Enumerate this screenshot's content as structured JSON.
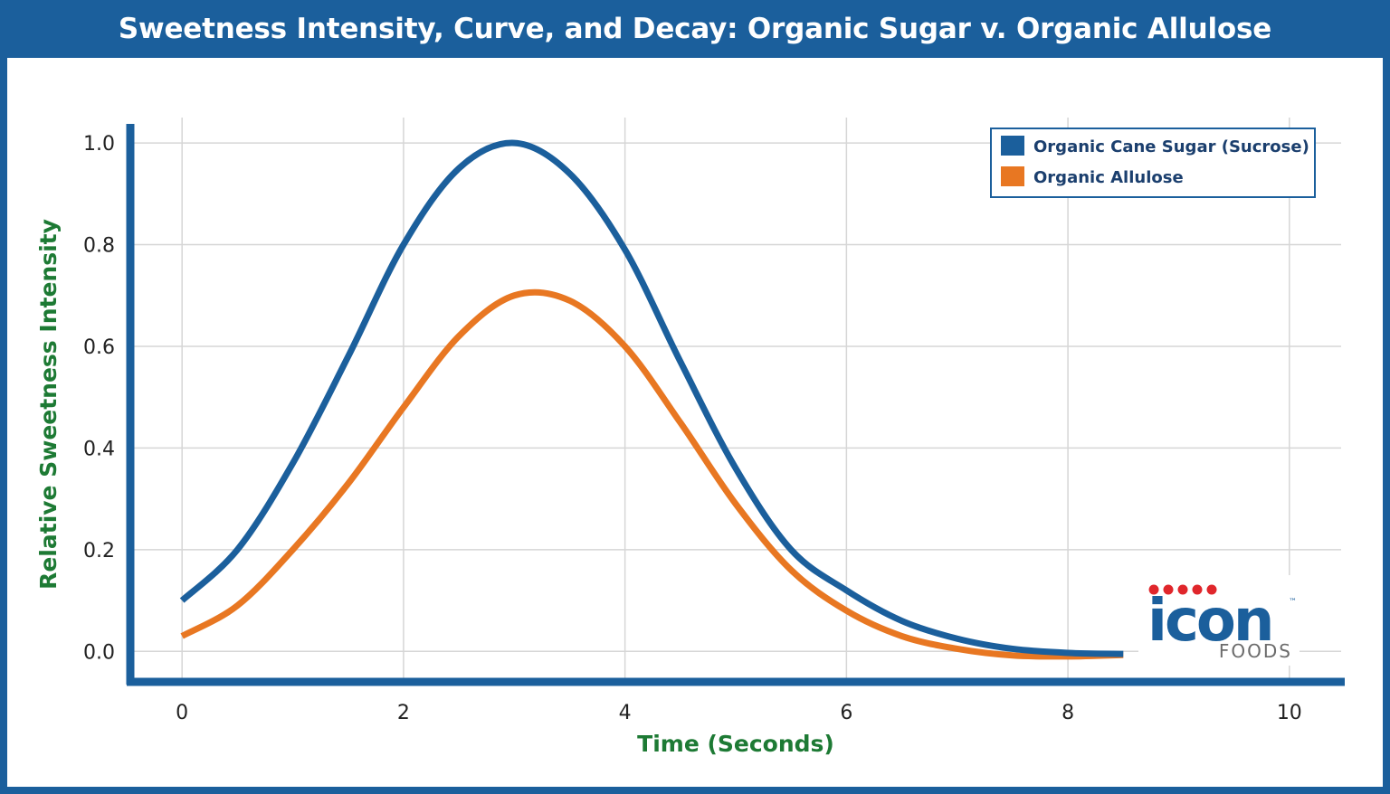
{
  "chart_data": {
    "type": "line",
    "title": "Sweetness Intensity, Curve, and Decay: Organic Sugar v. Organic Allulose",
    "xlabel": "Time (Seconds)",
    "ylabel": "Relative Sweetness Intensity",
    "xlim": [
      -0.5,
      10.5
    ],
    "ylim": [
      -0.06,
      1.05
    ],
    "xticks": [
      0,
      2,
      4,
      6,
      8,
      10
    ],
    "yticks": [
      0.0,
      0.2,
      0.4,
      0.6,
      0.8,
      1.0
    ],
    "xtick_labels": [
      "0",
      "2",
      "4",
      "6",
      "8",
      "10"
    ],
    "ytick_labels": [
      "0.0",
      "0.2",
      "0.4",
      "0.6",
      "0.8",
      "1.0"
    ],
    "grid": true,
    "legend_position": "top-right",
    "series": [
      {
        "name": "Organic Cane Sugar (Sucrose)",
        "color": "#1b5f9c",
        "x": [
          0,
          0.5,
          1,
          1.5,
          2,
          2.5,
          3,
          3.5,
          4,
          4.5,
          5,
          5.5,
          6,
          6.5,
          7,
          7.5,
          8,
          8.5
        ],
        "y": [
          0.1,
          0.2,
          0.37,
          0.58,
          0.8,
          0.95,
          1.0,
          0.94,
          0.79,
          0.57,
          0.36,
          0.2,
          0.12,
          0.06,
          0.025,
          0.005,
          -0.003,
          -0.005
        ]
      },
      {
        "name": "Organic Allulose",
        "color": "#e87722",
        "x": [
          0,
          0.5,
          1,
          1.5,
          2,
          2.5,
          3,
          3.5,
          4,
          4.5,
          5,
          5.5,
          6,
          6.5,
          7,
          7.5,
          8,
          8.5
        ],
        "y": [
          0.03,
          0.09,
          0.2,
          0.33,
          0.48,
          0.62,
          0.7,
          0.69,
          0.6,
          0.45,
          0.29,
          0.16,
          0.08,
          0.03,
          0.005,
          -0.008,
          -0.01,
          -0.007
        ]
      }
    ]
  },
  "logo": {
    "brand": "icon",
    "sub": "FOODS",
    "tm": "™",
    "dot_color": "#e0262b"
  }
}
